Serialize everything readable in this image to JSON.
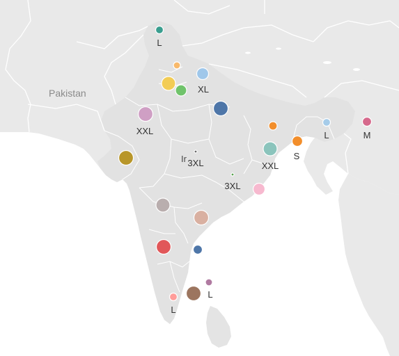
{
  "map": {
    "country_label": "Pakistan",
    "city_label_partial": "Ir",
    "colors": {
      "land": "#e9e9e9",
      "sea": "#ffffff",
      "border": "#ffffff"
    }
  },
  "markers": [
    {
      "id": "m1",
      "color": "#3a9e8f",
      "size_label": "L"
    },
    {
      "id": "m2",
      "color": "#f8b96b",
      "size_label": ""
    },
    {
      "id": "m3",
      "color": "#f2cc55",
      "size_label": ""
    },
    {
      "id": "m4",
      "color": "#70c36b",
      "size_label": ""
    },
    {
      "id": "m5",
      "color": "#9fc7ea",
      "size_label": "XL"
    },
    {
      "id": "m6",
      "color": "#cf9fc4",
      "size_label": "XXL"
    },
    {
      "id": "m7",
      "color": "#4e76a8",
      "size_label": ""
    },
    {
      "id": "m8",
      "color": "#b8962a",
      "size_label": ""
    },
    {
      "id": "m9",
      "color": "#6b6b6b",
      "size_label": "3XL"
    },
    {
      "id": "m10",
      "color": "#f28e2b",
      "size_label": ""
    },
    {
      "id": "m11",
      "color": "#8bc4bc",
      "size_label": "XXL"
    },
    {
      "id": "m12",
      "color": "#f28e2b",
      "size_label": "S"
    },
    {
      "id": "m13",
      "color": "#a6cce9",
      "size_label": "L"
    },
    {
      "id": "m14",
      "color": "#d6698c",
      "size_label": "M"
    },
    {
      "id": "m15",
      "color": "#59a14f",
      "size_label": "3XL"
    },
    {
      "id": "m16",
      "color": "#f7b9cf",
      "size_label": ""
    },
    {
      "id": "m17",
      "color": "#b9aeae",
      "size_label": ""
    },
    {
      "id": "m18",
      "color": "#d9b0a1",
      "size_label": ""
    },
    {
      "id": "m19",
      "color": "#e15759",
      "size_label": ""
    },
    {
      "id": "m20",
      "color": "#4e76a8",
      "size_label": ""
    },
    {
      "id": "m21",
      "color": "#9c755f",
      "size_label": "L"
    },
    {
      "id": "m22",
      "color": "#b07aa1",
      "size_label": ""
    },
    {
      "id": "m23",
      "color": "#ff9d9a",
      "size_label": "L"
    }
  ]
}
